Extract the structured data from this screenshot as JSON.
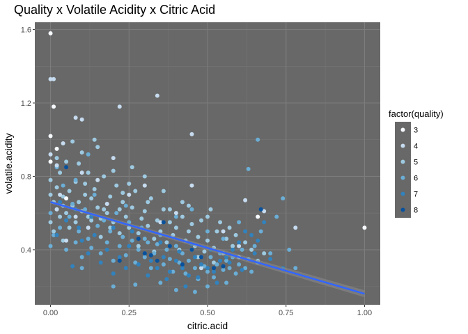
{
  "chart_data": {
    "type": "scatter",
    "title": "Quality x Volatile Acidity x Citric Acid",
    "xlabel": "citric.acid",
    "ylabel": "volatile.acidity",
    "xlim": [
      -0.05,
      1.05
    ],
    "ylim": [
      0.1,
      1.64
    ],
    "x_ticks": [
      0.0,
      0.25,
      0.5,
      0.75,
      1.0
    ],
    "x_tick_labels": [
      "0.00",
      "0.25",
      "0.50",
      "0.75",
      "1.00"
    ],
    "y_ticks": [
      0.4,
      0.8,
      1.2,
      1.6
    ],
    "y_tick_labels": [
      "0.4",
      "0.8",
      "1.2",
      "1.6"
    ],
    "grid": true,
    "legend": {
      "title": "factor(quality)",
      "position": "right",
      "entries": [
        {
          "label": "3",
          "color": "#f7fbff"
        },
        {
          "label": "4",
          "color": "#c6dbef"
        },
        {
          "label": "5",
          "color": "#9ecae1"
        },
        {
          "label": "6",
          "color": "#6baed6"
        },
        {
          "label": "7",
          "color": "#3182bd"
        },
        {
          "label": "8",
          "color": "#08519c"
        }
      ]
    },
    "trend_line": {
      "x": [
        0.0,
        1.0
      ],
      "y": [
        0.66,
        0.16
      ],
      "color": "#3366ff"
    },
    "series": [
      {
        "name": "3",
        "points": [
          [
            0.0,
            1.58
          ],
          [
            0.01,
            1.18
          ],
          [
            0.0,
            1.02
          ],
          [
            0.02,
            0.95
          ],
          [
            0.66,
            0.58
          ],
          [
            1.0,
            0.52
          ],
          [
            0.05,
            0.68
          ],
          [
            0.0,
            0.88
          ]
        ]
      },
      {
        "name": "4",
        "points": [
          [
            0.0,
            1.33
          ],
          [
            0.01,
            1.33
          ],
          [
            0.08,
            1.12
          ],
          [
            0.1,
            1.11
          ],
          [
            0.34,
            1.24
          ],
          [
            0.22,
            1.18
          ],
          [
            0.45,
            1.03
          ],
          [
            0.04,
            0.98
          ],
          [
            0.0,
            0.92
          ],
          [
            0.02,
            0.86
          ],
          [
            0.1,
            0.82
          ],
          [
            0.15,
            0.78
          ],
          [
            0.02,
            0.62
          ],
          [
            0.08,
            0.58
          ],
          [
            0.25,
            0.7
          ],
          [
            0.3,
            0.75
          ],
          [
            0.12,
            0.52
          ],
          [
            0.4,
            0.6
          ],
          [
            0.55,
            0.5
          ],
          [
            0.45,
            0.75
          ],
          [
            0.62,
            0.67
          ],
          [
            0.68,
            0.61
          ],
          [
            0.78,
            0.52
          ],
          [
            0.03,
            0.7
          ],
          [
            0.05,
            0.45
          ],
          [
            0.2,
            0.9
          ],
          [
            0.18,
            0.65
          ],
          [
            0.35,
            0.55
          ],
          [
            0.6,
            0.42
          ],
          [
            0.48,
            0.3
          ]
        ]
      },
      {
        "name": "5",
        "points": [
          [
            0.0,
            0.78
          ],
          [
            0.0,
            0.7
          ],
          [
            0.01,
            0.66
          ],
          [
            0.02,
            0.62
          ],
          [
            0.02,
            0.74
          ],
          [
            0.03,
            0.58
          ],
          [
            0.03,
            0.82
          ],
          [
            0.04,
            0.69
          ],
          [
            0.05,
            0.6
          ],
          [
            0.06,
            0.72
          ],
          [
            0.07,
            0.64
          ],
          [
            0.08,
            0.55
          ],
          [
            0.08,
            0.77
          ],
          [
            0.09,
            0.66
          ],
          [
            0.1,
            0.61
          ],
          [
            0.11,
            0.7
          ],
          [
            0.12,
            0.58
          ],
          [
            0.13,
            0.68
          ],
          [
            0.14,
            0.73
          ],
          [
            0.15,
            0.63
          ],
          [
            0.16,
            0.57
          ],
          [
            0.17,
            0.8
          ],
          [
            0.18,
            0.6
          ],
          [
            0.19,
            0.69
          ],
          [
            0.2,
            0.55
          ],
          [
            0.21,
            0.75
          ],
          [
            0.22,
            0.62
          ],
          [
            0.23,
            0.66
          ],
          [
            0.24,
            0.58
          ],
          [
            0.25,
            0.52
          ],
          [
            0.26,
            0.63
          ],
          [
            0.27,
            0.72
          ],
          [
            0.28,
            0.49
          ],
          [
            0.29,
            0.57
          ],
          [
            0.3,
            0.61
          ],
          [
            0.31,
            0.53
          ],
          [
            0.32,
            0.68
          ],
          [
            0.33,
            0.46
          ],
          [
            0.34,
            0.56
          ],
          [
            0.35,
            0.5
          ],
          [
            0.36,
            0.62
          ],
          [
            0.37,
            0.44
          ],
          [
            0.38,
            0.55
          ],
          [
            0.39,
            0.48
          ],
          [
            0.4,
            0.52
          ],
          [
            0.41,
            0.4
          ],
          [
            0.42,
            0.58
          ],
          [
            0.43,
            0.45
          ],
          [
            0.44,
            0.5
          ],
          [
            0.45,
            0.54
          ],
          [
            0.46,
            0.42
          ],
          [
            0.47,
            0.47
          ],
          [
            0.48,
            0.56
          ],
          [
            0.49,
            0.39
          ],
          [
            0.5,
            0.45
          ],
          [
            0.51,
            0.62
          ],
          [
            0.52,
            0.41
          ],
          [
            0.53,
            0.5
          ],
          [
            0.55,
            0.38
          ],
          [
            0.56,
            0.46
          ],
          [
            0.58,
            0.42
          ],
          [
            0.6,
            0.36
          ],
          [
            0.62,
            0.44
          ],
          [
            0.64,
            0.4
          ],
          [
            0.66,
            0.34
          ],
          [
            0.68,
            0.38
          ],
          [
            0.05,
            0.88
          ],
          [
            0.1,
            0.93
          ],
          [
            0.15,
            0.96
          ],
          [
            0.02,
            0.9
          ],
          [
            0.07,
            0.99
          ],
          [
            0.14,
            1.0
          ],
          [
            0.0,
            0.55
          ],
          [
            0.01,
            0.5
          ],
          [
            0.04,
            0.45
          ],
          [
            0.06,
            0.52
          ],
          [
            0.2,
            0.83
          ],
          [
            0.26,
            0.85
          ],
          [
            0.3,
            0.8
          ],
          [
            0.09,
            0.87
          ],
          [
            0.12,
            0.82
          ],
          [
            0.36,
            0.72
          ],
          [
            0.42,
            0.66
          ],
          [
            0.16,
            0.47
          ],
          [
            0.22,
            0.49
          ],
          [
            0.28,
            0.42
          ],
          [
            0.33,
            0.39
          ],
          [
            0.04,
            0.64
          ],
          [
            0.11,
            0.76
          ],
          [
            0.19,
            0.52
          ],
          [
            0.25,
            0.76
          ],
          [
            0.31,
            0.66
          ],
          [
            0.38,
            0.62
          ],
          [
            0.44,
            0.64
          ],
          [
            0.5,
            0.58
          ],
          [
            0.54,
            0.55
          ],
          [
            0.47,
            0.36
          ],
          [
            0.52,
            0.33
          ],
          [
            0.57,
            0.52
          ],
          [
            0.59,
            0.48
          ],
          [
            0.13,
            0.56
          ],
          [
            0.17,
            0.62
          ],
          [
            0.23,
            0.71
          ]
        ]
      },
      {
        "name": "6",
        "points": [
          [
            0.0,
            0.42
          ],
          [
            0.01,
            0.48
          ],
          [
            0.03,
            0.52
          ],
          [
            0.05,
            0.4
          ],
          [
            0.06,
            0.58
          ],
          [
            0.08,
            0.44
          ],
          [
            0.09,
            0.5
          ],
          [
            0.1,
            0.36
          ],
          [
            0.12,
            0.46
          ],
          [
            0.13,
            0.41
          ],
          [
            0.15,
            0.53
          ],
          [
            0.16,
            0.38
          ],
          [
            0.18,
            0.44
          ],
          [
            0.19,
            0.5
          ],
          [
            0.2,
            0.34
          ],
          [
            0.22,
            0.42
          ],
          [
            0.23,
            0.47
          ],
          [
            0.24,
            0.37
          ],
          [
            0.26,
            0.45
          ],
          [
            0.27,
            0.33
          ],
          [
            0.28,
            0.4
          ],
          [
            0.3,
            0.36
          ],
          [
            0.31,
            0.44
          ],
          [
            0.32,
            0.3
          ],
          [
            0.33,
            0.38
          ],
          [
            0.34,
            0.43
          ],
          [
            0.36,
            0.32
          ],
          [
            0.37,
            0.4
          ],
          [
            0.38,
            0.35
          ],
          [
            0.39,
            0.28
          ],
          [
            0.4,
            0.42
          ],
          [
            0.41,
            0.33
          ],
          [
            0.42,
            0.38
          ],
          [
            0.43,
            0.27
          ],
          [
            0.44,
            0.34
          ],
          [
            0.45,
            0.4
          ],
          [
            0.46,
            0.3
          ],
          [
            0.47,
            0.24
          ],
          [
            0.48,
            0.36
          ],
          [
            0.49,
            0.31
          ],
          [
            0.5,
            0.28
          ],
          [
            0.51,
            0.36
          ],
          [
            0.52,
            0.25
          ],
          [
            0.53,
            0.32
          ],
          [
            0.54,
            0.38
          ],
          [
            0.55,
            0.29
          ],
          [
            0.56,
            0.34
          ],
          [
            0.57,
            0.3
          ],
          [
            0.58,
            0.36
          ],
          [
            0.59,
            0.27
          ],
          [
            0.6,
            0.32
          ],
          [
            0.61,
            0.4
          ],
          [
            0.62,
            0.3
          ],
          [
            0.63,
            0.35
          ],
          [
            0.64,
            0.28
          ],
          [
            0.65,
            0.42
          ],
          [
            0.66,
            0.33
          ],
          [
            0.67,
            0.5
          ],
          [
            0.7,
            0.38
          ],
          [
            0.72,
            0.58
          ],
          [
            0.74,
            0.68
          ],
          [
            0.76,
            0.4
          ],
          [
            0.78,
            0.3
          ],
          [
            0.0,
            0.6
          ],
          [
            0.02,
            0.85
          ],
          [
            0.04,
            0.75
          ],
          [
            0.07,
            0.65
          ],
          [
            0.11,
            0.62
          ],
          [
            0.14,
            0.7
          ],
          [
            0.17,
            0.56
          ],
          [
            0.21,
            0.6
          ],
          [
            0.25,
            0.55
          ],
          [
            0.29,
            0.52
          ],
          [
            0.35,
            0.48
          ],
          [
            0.4,
            0.58
          ],
          [
            0.45,
            0.62
          ],
          [
            0.5,
            0.5
          ],
          [
            0.55,
            0.46
          ],
          [
            0.6,
            0.55
          ],
          [
            0.66,
            1.0
          ],
          [
            0.63,
            0.84
          ],
          [
            0.1,
            0.3
          ],
          [
            0.2,
            0.2
          ],
          [
            0.27,
            0.21
          ],
          [
            0.35,
            0.22
          ],
          [
            0.4,
            0.18
          ],
          [
            0.46,
            0.17
          ],
          [
            0.5,
            0.2
          ],
          [
            0.56,
            0.22
          ],
          [
            0.3,
            0.46
          ],
          [
            0.24,
            0.64
          ],
          [
            0.08,
            0.78
          ],
          [
            0.12,
            0.92
          ]
        ]
      },
      {
        "name": "7",
        "points": [
          [
            0.05,
            0.56
          ],
          [
            0.1,
            0.45
          ],
          [
            0.14,
            0.48
          ],
          [
            0.18,
            0.4
          ],
          [
            0.22,
            0.36
          ],
          [
            0.25,
            0.42
          ],
          [
            0.28,
            0.32
          ],
          [
            0.3,
            0.38
          ],
          [
            0.32,
            0.34
          ],
          [
            0.34,
            0.3
          ],
          [
            0.36,
            0.36
          ],
          [
            0.38,
            0.28
          ],
          [
            0.4,
            0.34
          ],
          [
            0.42,
            0.3
          ],
          [
            0.44,
            0.26
          ],
          [
            0.46,
            0.36
          ],
          [
            0.48,
            0.32
          ],
          [
            0.5,
            0.3
          ],
          [
            0.52,
            0.28
          ],
          [
            0.54,
            0.34
          ],
          [
            0.56,
            0.36
          ],
          [
            0.58,
            0.4
          ],
          [
            0.6,
            0.44
          ],
          [
            0.62,
            0.5
          ],
          [
            0.64,
            0.48
          ],
          [
            0.66,
            0.45
          ],
          [
            0.68,
            0.55
          ],
          [
            0.7,
            0.35
          ],
          [
            0.74,
            0.3
          ],
          [
            0.03,
            0.66
          ],
          [
            0.08,
            0.62
          ],
          [
            0.13,
            0.58
          ],
          [
            0.2,
            0.52
          ],
          [
            0.26,
            0.5
          ],
          [
            0.35,
            0.44
          ],
          [
            0.41,
            0.39
          ],
          [
            0.47,
            0.25
          ],
          [
            0.53,
            0.22
          ],
          [
            0.43,
            0.2
          ],
          [
            0.37,
            0.24
          ],
          [
            0.31,
            0.26
          ],
          [
            0.24,
            0.3
          ],
          [
            0.16,
            0.33
          ],
          [
            0.12,
            0.38
          ],
          [
            0.07,
            0.31
          ],
          [
            0.2,
            0.27
          ],
          [
            0.45,
            0.43
          ],
          [
            0.51,
            0.4
          ],
          [
            0.57,
            0.33
          ],
          [
            0.61,
            0.29
          ],
          [
            0.65,
            0.38
          ],
          [
            0.02,
            0.48
          ],
          [
            0.09,
            0.52
          ]
        ]
      },
      {
        "name": "8",
        "points": [
          [
            0.05,
            0.85
          ],
          [
            0.28,
            0.46
          ],
          [
            0.32,
            0.37
          ],
          [
            0.38,
            0.42
          ],
          [
            0.42,
            0.32
          ],
          [
            0.48,
            0.36
          ],
          [
            0.52,
            0.3
          ],
          [
            0.55,
            0.31
          ],
          [
            0.34,
            0.34
          ],
          [
            0.3,
            0.38
          ],
          [
            0.67,
            0.62
          ],
          [
            0.36,
            0.55
          ],
          [
            0.45,
            0.4
          ],
          [
            0.22,
            0.34
          ]
        ]
      }
    ]
  }
}
